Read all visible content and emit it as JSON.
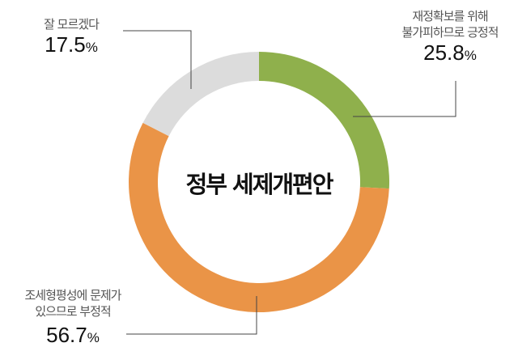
{
  "chart_data": {
    "type": "pie",
    "donut": true,
    "title": "정부 세제개편안",
    "slices": [
      {
        "label_lines": [
          "재정확보를 위해",
          "불가피하므로 긍정적"
        ],
        "value": 25.8,
        "display": "25.8",
        "color": "#8fb04c"
      },
      {
        "label_lines": [
          "조세형평성에 문제가",
          "있으므로 부정적"
        ],
        "value": 56.7,
        "display": "56.7",
        "color": "#ea9447"
      },
      {
        "label_lines": [
          "잘 모르겠다"
        ],
        "value": 17.5,
        "display": "17.5",
        "color": "#dcdcdc"
      }
    ],
    "unit": "%",
    "start": "top",
    "direction": "clockwise"
  }
}
